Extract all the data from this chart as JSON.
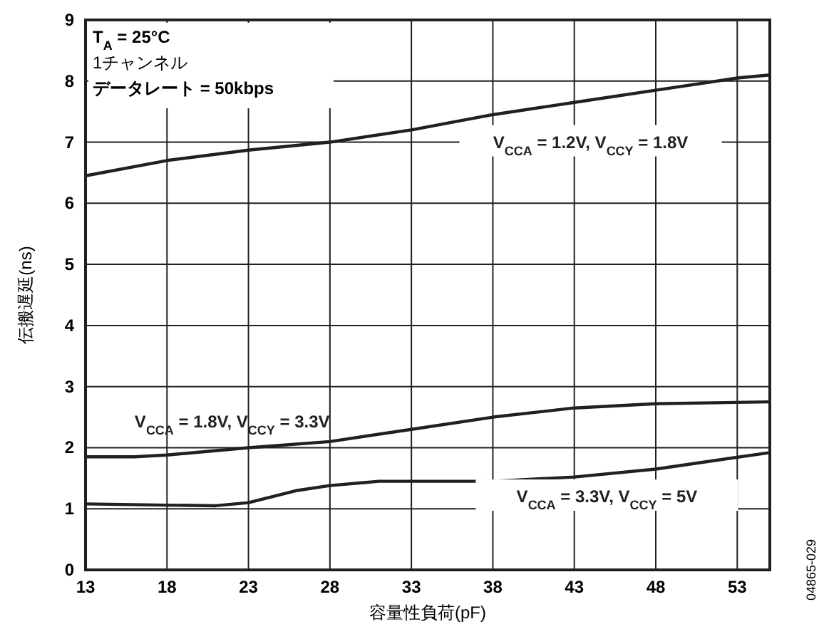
{
  "chart_data": {
    "type": "line",
    "xlabel": "容量性負荷(pF)",
    "ylabel": "伝搬遅延(ns)",
    "xlim": [
      13,
      55
    ],
    "xticks": [
      13,
      18,
      23,
      28,
      33,
      38,
      43,
      48,
      53
    ],
    "ylim": [
      0,
      9
    ],
    "yticks": [
      0,
      1,
      2,
      3,
      4,
      5,
      6,
      7,
      8,
      9
    ],
    "grid": true,
    "marker": "none",
    "line_style": "solid",
    "annotations": [
      "T$_{A}$ = 25°C",
      "1チャンネル",
      "データレート = 50kbps",
      "04865-029"
    ],
    "series": [
      {
        "name": "V$_{CCA}$ = 1.2V, V$_{CCY}$ = 1.8V",
        "color": "#231f20",
        "x": [
          13,
          18,
          23,
          28,
          33,
          38,
          43,
          48,
          53,
          55
        ],
        "values": [
          6.45,
          6.7,
          6.87,
          7.0,
          7.2,
          7.45,
          7.65,
          7.85,
          8.05,
          8.1
        ]
      },
      {
        "name": "V$_{CCA}$ = 1.8V, V$_{CCY}$ = 3.3V",
        "color": "#231f20",
        "x": [
          13,
          16,
          18,
          23,
          28,
          33,
          38,
          43,
          48,
          55
        ],
        "values": [
          1.85,
          1.85,
          1.88,
          2.0,
          2.1,
          2.3,
          2.5,
          2.65,
          2.72,
          2.75
        ]
      },
      {
        "name": "V$_{CCA}$ = 3.3V, V$_{CCY}$ = 5V",
        "color": "#231f20",
        "x": [
          13,
          18,
          21,
          23,
          26,
          28,
          31,
          38,
          43,
          48,
          55
        ],
        "values": [
          1.08,
          1.06,
          1.05,
          1.1,
          1.3,
          1.38,
          1.45,
          1.45,
          1.52,
          1.65,
          1.92
        ]
      }
    ]
  }
}
